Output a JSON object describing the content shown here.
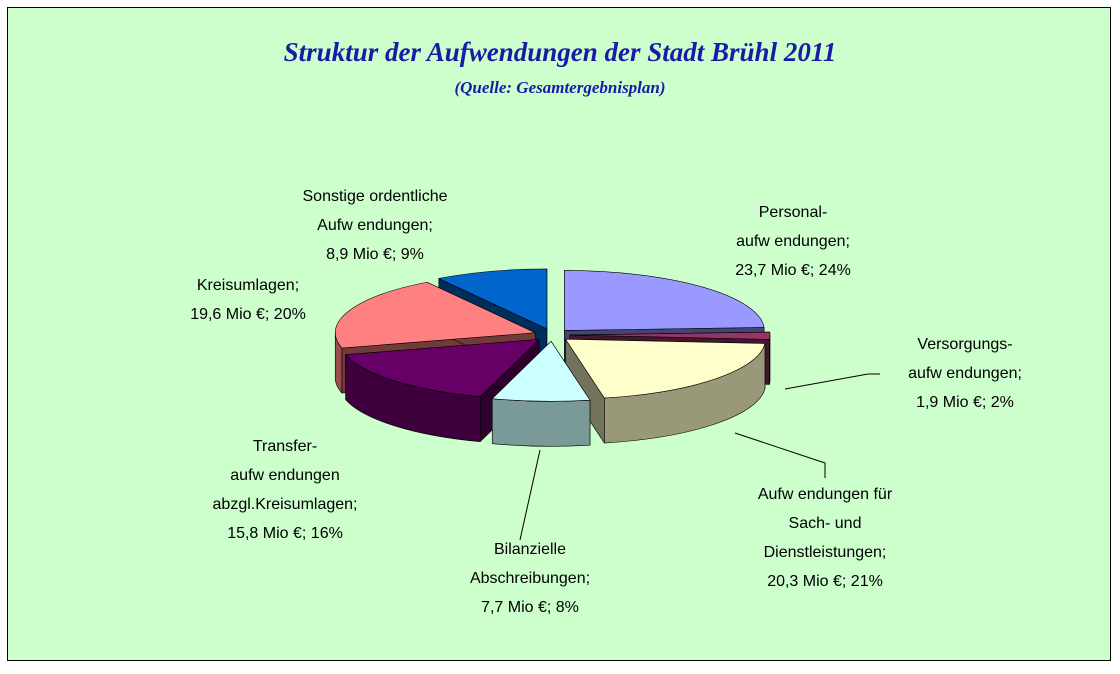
{
  "chart_data": {
    "type": "pie3d",
    "title": "Struktur der Aufwendungen der Stadt Brühl 2011",
    "subtitle": "(Quelle: Gesamtergebnisplan)",
    "categories": [
      [
        "Personal-",
        "aufw endungen;"
      ],
      [
        "Versorgungs-",
        "aufw endungen;"
      ],
      [
        "Aufw endungen für",
        "Sach- und",
        "Dienstleistungen;"
      ],
      [
        "Bilanzielle",
        "Abschreibungen;"
      ],
      [
        "Transfer-",
        "aufw endungen",
        "abzgl.Kreisumlagen;"
      ],
      [
        "Kreisumlagen;"
      ],
      [
        "Sonstige ordentliche",
        "Aufw endungen;"
      ]
    ],
    "values": [
      23.7,
      1.9,
      20.3,
      7.7,
      15.8,
      19.6,
      8.9
    ],
    "value_labels": [
      "23,7 Mio €; 24%",
      "1,9 Mio €; 2%",
      "20,3 Mio €; 21%",
      "7,7 Mio €; 8%",
      "15,8 Mio €; 16%",
      "19,6 Mio €; 20%",
      "8,9 Mio €; 9%"
    ],
    "colors": [
      "#9999ff",
      "#993366",
      "#ffffcc",
      "#ccffff",
      "#660066",
      "#ff8080",
      "#0066cc"
    ]
  }
}
